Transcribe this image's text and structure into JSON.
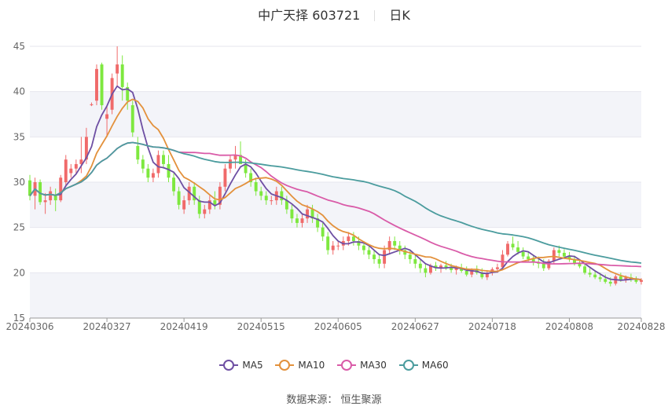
{
  "header": {
    "stock": "中广天择 603721",
    "period": "日K"
  },
  "legend": [
    "MA5",
    "MA10",
    "MA30",
    "MA60"
  ],
  "colors": {
    "MA5": "#6e4fa3",
    "MA10": "#e3913c",
    "MA30": "#d95ba8",
    "MA60": "#4b9c9e",
    "up": "#f06a6a",
    "down": "#7ee83f"
  },
  "source_label": "数据来源： 恒生聚源",
  "chart_data": {
    "type": "candlestick",
    "ylim": [
      15,
      45
    ],
    "yticks": [
      15,
      20,
      25,
      30,
      35,
      40,
      45
    ],
    "xticks": [
      "20240306",
      "20240327",
      "20240419",
      "20240515",
      "20240605",
      "20240627",
      "20240718",
      "20240808",
      "20240828"
    ],
    "xtick_index": [
      0,
      15,
      30,
      45,
      60,
      75,
      90,
      105,
      119
    ],
    "ohlc": [
      [
        30.2,
        30.8,
        28.0,
        28.5
      ],
      [
        28.5,
        30.5,
        27.0,
        30.0
      ],
      [
        30.0,
        30.3,
        27.5,
        27.8
      ],
      [
        27.8,
        28.8,
        26.5,
        28.0
      ],
      [
        28.0,
        29.5,
        27.5,
        29.0
      ],
      [
        28.5,
        29.3,
        26.8,
        28.0
      ],
      [
        28.0,
        30.8,
        27.8,
        30.5
      ],
      [
        30.0,
        33.0,
        29.5,
        32.5
      ],
      [
        31.0,
        32.0,
        30.5,
        31.5
      ],
      [
        31.5,
        32.5,
        31.0,
        32.0
      ],
      [
        32.0,
        35.0,
        31.0,
        32.5
      ],
      [
        32.5,
        36.0,
        32.0,
        35.0
      ],
      [
        38.5,
        38.8,
        38.4,
        38.6
      ],
      [
        39.0,
        43.0,
        38.5,
        42.5
      ],
      [
        43.0,
        43.2,
        38.0,
        38.5
      ],
      [
        37.0,
        38.5,
        35.0,
        37.5
      ],
      [
        38.0,
        42.0,
        37.5,
        41.5
      ],
      [
        42.0,
        45.0,
        40.5,
        43.0
      ],
      [
        43.0,
        44.0,
        39.0,
        40.5
      ],
      [
        40.5,
        41.0,
        38.0,
        39.0
      ],
      [
        38.5,
        39.0,
        35.0,
        35.5
      ],
      [
        34.0,
        35.0,
        32.0,
        32.5
      ],
      [
        32.5,
        33.0,
        31.0,
        31.5
      ],
      [
        31.5,
        32.0,
        30.0,
        30.5
      ],
      [
        30.5,
        31.5,
        30.0,
        31.0
      ],
      [
        31.0,
        33.5,
        30.5,
        33.0
      ],
      [
        33.0,
        33.5,
        31.5,
        32.0
      ],
      [
        32.0,
        33.0,
        30.0,
        30.5
      ],
      [
        30.5,
        31.0,
        28.5,
        29.0
      ],
      [
        29.0,
        29.5,
        27.0,
        27.5
      ],
      [
        27.0,
        28.5,
        26.5,
        28.0
      ],
      [
        28.0,
        30.0,
        27.5,
        29.5
      ],
      [
        29.5,
        30.0,
        27.5,
        28.0
      ],
      [
        28.0,
        28.5,
        26.0,
        26.5
      ],
      [
        26.5,
        27.5,
        26.0,
        27.0
      ],
      [
        27.0,
        28.5,
        26.5,
        28.0
      ],
      [
        28.0,
        29.0,
        27.0,
        27.5
      ],
      [
        27.5,
        30.0,
        27.0,
        29.5
      ],
      [
        29.5,
        32.0,
        29.0,
        31.5
      ],
      [
        31.5,
        33.0,
        31.0,
        32.5
      ],
      [
        32.5,
        34.0,
        31.5,
        33.0
      ],
      [
        33.0,
        34.5,
        32.0,
        32.0
      ],
      [
        32.0,
        32.5,
        30.5,
        31.0
      ],
      [
        31.0,
        31.5,
        29.5,
        30.0
      ],
      [
        30.0,
        30.5,
        28.5,
        29.0
      ],
      [
        29.0,
        29.5,
        28.0,
        28.5
      ],
      [
        28.5,
        29.0,
        27.5,
        28.0
      ],
      [
        28.0,
        28.5,
        27.5,
        28.0
      ],
      [
        28.0,
        29.5,
        27.5,
        29.0
      ],
      [
        29.0,
        29.5,
        27.5,
        28.0
      ],
      [
        28.0,
        28.5,
        26.5,
        27.0
      ],
      [
        27.0,
        27.5,
        25.5,
        26.0
      ],
      [
        26.0,
        26.5,
        25.0,
        25.5
      ],
      [
        25.5,
        26.5,
        25.0,
        26.0
      ],
      [
        26.0,
        27.5,
        25.5,
        27.0
      ],
      [
        27.0,
        27.5,
        25.5,
        26.0
      ],
      [
        26.0,
        26.5,
        24.5,
        25.0
      ],
      [
        25.0,
        25.5,
        23.5,
        24.0
      ],
      [
        24.0,
        24.5,
        22.0,
        22.5
      ],
      [
        22.5,
        23.5,
        22.0,
        23.0
      ],
      [
        23.0,
        23.5,
        22.5,
        23.0
      ],
      [
        23.0,
        24.0,
        22.5,
        23.5
      ],
      [
        23.5,
        24.5,
        23.0,
        24.0
      ],
      [
        24.0,
        24.5,
        23.0,
        23.5
      ],
      [
        23.5,
        24.0,
        22.5,
        23.0
      ],
      [
        23.0,
        23.5,
        22.0,
        22.5
      ],
      [
        22.5,
        23.0,
        21.5,
        22.0
      ],
      [
        22.0,
        22.5,
        21.0,
        21.5
      ],
      [
        21.5,
        22.0,
        20.5,
        21.0
      ],
      [
        21.0,
        23.0,
        20.5,
        22.5
      ],
      [
        22.5,
        24.0,
        22.0,
        23.5
      ],
      [
        23.5,
        24.0,
        22.5,
        23.0
      ],
      [
        23.0,
        23.5,
        22.0,
        22.5
      ],
      [
        22.5,
        23.0,
        21.5,
        22.0
      ],
      [
        22.0,
        22.5,
        21.0,
        21.5
      ],
      [
        21.5,
        22.0,
        20.5,
        21.0
      ],
      [
        21.0,
        21.5,
        20.0,
        20.5
      ],
      [
        20.5,
        21.0,
        19.5,
        20.0
      ],
      [
        20.0,
        21.0,
        19.8,
        20.8
      ],
      [
        20.8,
        21.2,
        20.2,
        20.5
      ],
      [
        20.5,
        21.0,
        20.0,
        20.8
      ],
      [
        20.8,
        21.3,
        20.3,
        20.6
      ],
      [
        20.6,
        21.0,
        20.0,
        20.3
      ],
      [
        20.3,
        20.8,
        19.8,
        20.5
      ],
      [
        20.5,
        21.0,
        20.0,
        20.2
      ],
      [
        20.2,
        20.7,
        19.6,
        19.8
      ],
      [
        19.8,
        20.5,
        19.5,
        20.3
      ],
      [
        20.3,
        20.8,
        19.8,
        20.0
      ],
      [
        20.0,
        20.5,
        19.3,
        19.5
      ],
      [
        19.5,
        20.3,
        19.2,
        20.0
      ],
      [
        20.0,
        20.6,
        19.7,
        20.4
      ],
      [
        20.4,
        21.0,
        20.0,
        20.6
      ],
      [
        20.6,
        22.5,
        20.5,
        22.0
      ],
      [
        22.0,
        23.5,
        21.8,
        23.2
      ],
      [
        23.2,
        24.0,
        22.5,
        22.8
      ],
      [
        22.8,
        23.5,
        22.0,
        22.3
      ],
      [
        22.3,
        22.8,
        21.5,
        21.8
      ],
      [
        21.8,
        22.3,
        21.2,
        21.5
      ],
      [
        21.5,
        22.0,
        20.8,
        21.2
      ],
      [
        21.2,
        21.8,
        20.5,
        21.0
      ],
      [
        21.0,
        21.5,
        20.2,
        20.5
      ],
      [
        20.5,
        21.5,
        20.3,
        21.3
      ],
      [
        21.3,
        22.8,
        21.0,
        22.5
      ],
      [
        22.5,
        23.0,
        21.8,
        22.2
      ],
      [
        22.2,
        22.6,
        21.5,
        21.8
      ],
      [
        21.8,
        22.3,
        21.2,
        21.5
      ],
      [
        21.5,
        21.9,
        20.8,
        21.0
      ],
      [
        21.0,
        21.4,
        20.5,
        20.7
      ],
      [
        20.7,
        21.0,
        19.8,
        20.0
      ],
      [
        20.0,
        20.5,
        19.5,
        19.8
      ],
      [
        19.8,
        20.3,
        19.3,
        19.5
      ],
      [
        19.5,
        20.0,
        19.0,
        19.3
      ],
      [
        19.3,
        19.8,
        18.8,
        19.0
      ],
      [
        19.0,
        19.5,
        18.5,
        18.8
      ],
      [
        18.8,
        19.8,
        18.6,
        19.6
      ],
      [
        19.6,
        20.0,
        19.0,
        19.2
      ],
      [
        19.2,
        19.7,
        18.9,
        19.5
      ],
      [
        19.5,
        19.9,
        19.0,
        19.3
      ],
      [
        19.3,
        19.6,
        18.8,
        19.0
      ],
      [
        19.0,
        19.4,
        18.7,
        19.2
      ]
    ],
    "ma_windows": {
      "MA5": 5,
      "MA10": 10,
      "MA30": 30,
      "MA60": 60
    }
  }
}
